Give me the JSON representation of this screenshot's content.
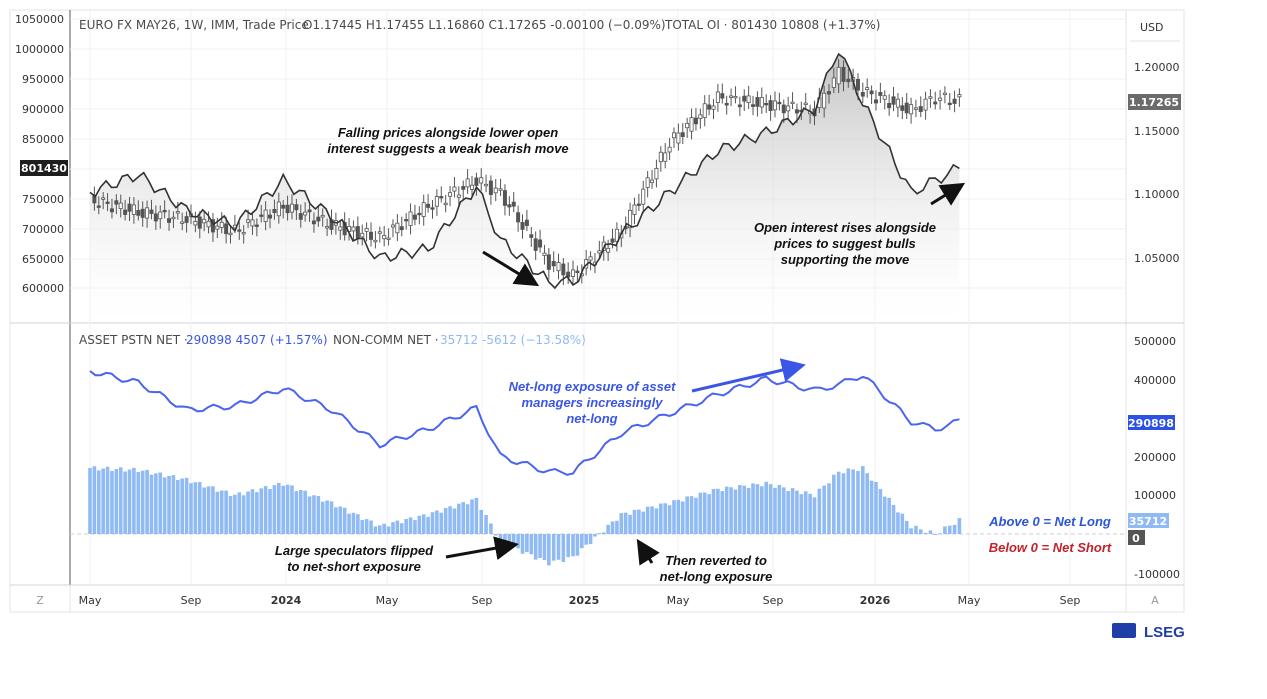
{
  "header": {
    "symbol": "EURO FX MAY26, 1W, IMM, Trade Price",
    "ohlc": "O1.17445  H1.17455  L1.16860  C1.17265  -0.00100 (−0.09%)",
    "oi": "TOTAL OI ·  801430  10808 (+1.37%)",
    "currency": "USD"
  },
  "lower_header": {
    "asset_label": "ASSET PSTN NET ·",
    "asset_value": "290898  4507 (+1.57%)",
    "noncomm_label": "NON-COMM NET ·",
    "noncomm_value": "35712  -5612 (−13.58%)"
  },
  "left_axis_ticks": [
    "1050000",
    "1000000",
    "950000",
    "900000",
    "850000",
    "800000",
    "750000",
    "700000",
    "650000",
    "600000"
  ],
  "right_axis_ticks": [
    "1.20000",
    "1.15000",
    "1.10000",
    "1.05000"
  ],
  "lower_axis_ticks": [
    "500000",
    "400000",
    "200000",
    "100000",
    "0",
    "-100000"
  ],
  "x_axis_ticks": [
    "May",
    "Sep",
    "2024",
    "May",
    "Sep",
    "2025",
    "May",
    "Sep",
    "2026",
    "May",
    "Sep"
  ],
  "badges": {
    "oi_last": "801430",
    "price_last": "1.17265",
    "asset_last": "290898",
    "noncomm_last": "35712",
    "zero": "0"
  },
  "annotations": {
    "falling_1": "Falling prices alongside lower open",
    "falling_2": "interest suggests a weak bearish move",
    "rising_1": "Open interest rises alongside",
    "rising_2": "prices to suggest bulls",
    "rising_3": "supporting the move",
    "netlong_1": "Net-long exposure of asset",
    "netlong_2": "managers increasingly",
    "netlong_3": "net-long",
    "spec_1": "Large speculators flipped",
    "spec_2": "to net-short exposure",
    "revert_1": "Then reverted to",
    "revert_2": "net-long exposure",
    "above_zero": "Above 0 = Net Long",
    "below_zero": "Below 0 = Net Short"
  },
  "corner": {
    "z": "Z",
    "a": "A"
  },
  "logo": "LSEG",
  "colors": {
    "asset_line": "#4a64ee",
    "noncomm_bar": "#8fbaf3",
    "oi_line": "#333333",
    "candle": "#555555",
    "badge_dark": "#1e1e1e",
    "badge_price": "#6b6b6b",
    "badge_asset": "#2d50e6",
    "badge_noncomm": "#8fbaf3"
  },
  "chart_data": [
    {
      "type": "line",
      "name": "TOTAL OI",
      "x": [
        "2023-05",
        "2023-07",
        "2023-09",
        "2023-11",
        "2024-01",
        "2024-03",
        "2024-05",
        "2024-07",
        "2024-09",
        "2024-10",
        "2024-12",
        "2025-01",
        "2025-03",
        "2025-05",
        "2025-07",
        "2025-09",
        "2025-11",
        "2025-12",
        "2026-01",
        "2026-03",
        "2026-04",
        "2026-05"
      ],
      "values": [
        760000,
        790000,
        730000,
        705000,
        780000,
        720000,
        650000,
        665000,
        770000,
        680000,
        610000,
        610000,
        690000,
        760000,
        830000,
        860000,
        900000,
        1000000,
        910000,
        760000,
        780000,
        801430
      ]
    },
    {
      "type": "candlestick",
      "name": "EURO FX MAY26 weekly close",
      "x": [
        "2023-05",
        "2023-07",
        "2023-09",
        "2023-11",
        "2024-01",
        "2024-03",
        "2024-05",
        "2024-07",
        "2024-09",
        "2024-10",
        "2024-12",
        "2025-01",
        "2025-03",
        "2025-05",
        "2025-07",
        "2025-09",
        "2025-11",
        "2025-12",
        "2026-01",
        "2026-03",
        "2026-04",
        "2026-05"
      ],
      "close": [
        1.095,
        1.085,
        1.08,
        1.07,
        1.09,
        1.075,
        1.065,
        1.09,
        1.11,
        1.1,
        1.045,
        1.035,
        1.07,
        1.14,
        1.175,
        1.17,
        1.165,
        1.195,
        1.18,
        1.165,
        1.175,
        1.17265
      ]
    },
    {
      "type": "line",
      "name": "ASSET PSTN NET",
      "x": [
        "2023-05",
        "2023-07",
        "2023-09",
        "2023-11",
        "2024-01",
        "2024-03",
        "2024-05",
        "2024-07",
        "2024-09",
        "2024-10",
        "2024-12",
        "2025-01",
        "2025-03",
        "2025-05",
        "2025-07",
        "2025-09",
        "2025-11",
        "2025-12",
        "2026-01",
        "2026-03",
        "2026-04",
        "2026-05"
      ],
      "values": [
        420000,
        390000,
        320000,
        330000,
        375000,
        320000,
        230000,
        270000,
        325000,
        200000,
        160000,
        160000,
        260000,
        310000,
        360000,
        400000,
        370000,
        385000,
        410000,
        290000,
        270000,
        290898
      ]
    },
    {
      "type": "bar",
      "name": "NON-COMM NET",
      "x": [
        "2023-05",
        "2023-07",
        "2023-09",
        "2023-11",
        "2024-01",
        "2024-03",
        "2024-05",
        "2024-07",
        "2024-09",
        "2024-10",
        "2024-12",
        "2025-01",
        "2025-03",
        "2025-05",
        "2025-07",
        "2025-09",
        "2025-11",
        "2025-12",
        "2026-01",
        "2026-03",
        "2026-04",
        "2026-05"
      ],
      "values": [
        170000,
        165000,
        140000,
        100000,
        130000,
        80000,
        20000,
        50000,
        90000,
        -20000,
        -75000,
        -60000,
        50000,
        80000,
        115000,
        130000,
        100000,
        160000,
        170000,
        20000,
        0,
        35712
      ]
    }
  ]
}
